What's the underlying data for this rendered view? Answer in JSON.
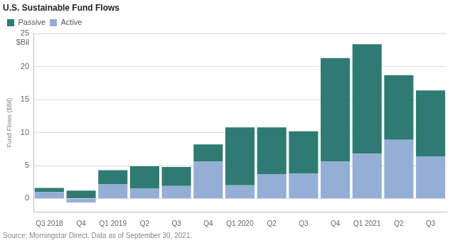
{
  "chart_data": {
    "type": "bar",
    "title": "U.S. Sustainable Fund Flows",
    "y_label": "Fund Flows ($Bil)",
    "y_unit_annotation": "$Bil",
    "source": "Source: Morningstar Direct. Data as of September 30, 2021.",
    "categories": [
      "Q3 2018",
      "Q4",
      "Q1 2019",
      "Q2",
      "Q3",
      "Q4",
      "Q1 2020",
      "Q2",
      "Q3",
      "Q4",
      "Q1 2021",
      "Q2",
      "Q3"
    ],
    "series": [
      {
        "name": "Active",
        "color": "#95aed6",
        "values": [
          1.0,
          -0.6,
          2.2,
          1.5,
          1.9,
          5.6,
          2.0,
          3.7,
          3.8,
          5.6,
          6.8,
          8.9,
          6.4
        ]
      },
      {
        "name": "Passive",
        "color": "#2f7b73",
        "values": [
          0.6,
          1.2,
          2.1,
          3.4,
          2.9,
          2.6,
          8.8,
          7.1,
          6.4,
          15.7,
          16.6,
          9.8,
          10.0
        ]
      }
    ],
    "stacked": true,
    "ylim": [
      -2,
      25
    ],
    "yticks": [
      0,
      5,
      10,
      15,
      20,
      25
    ],
    "grid": true,
    "legend": "top-left"
  }
}
